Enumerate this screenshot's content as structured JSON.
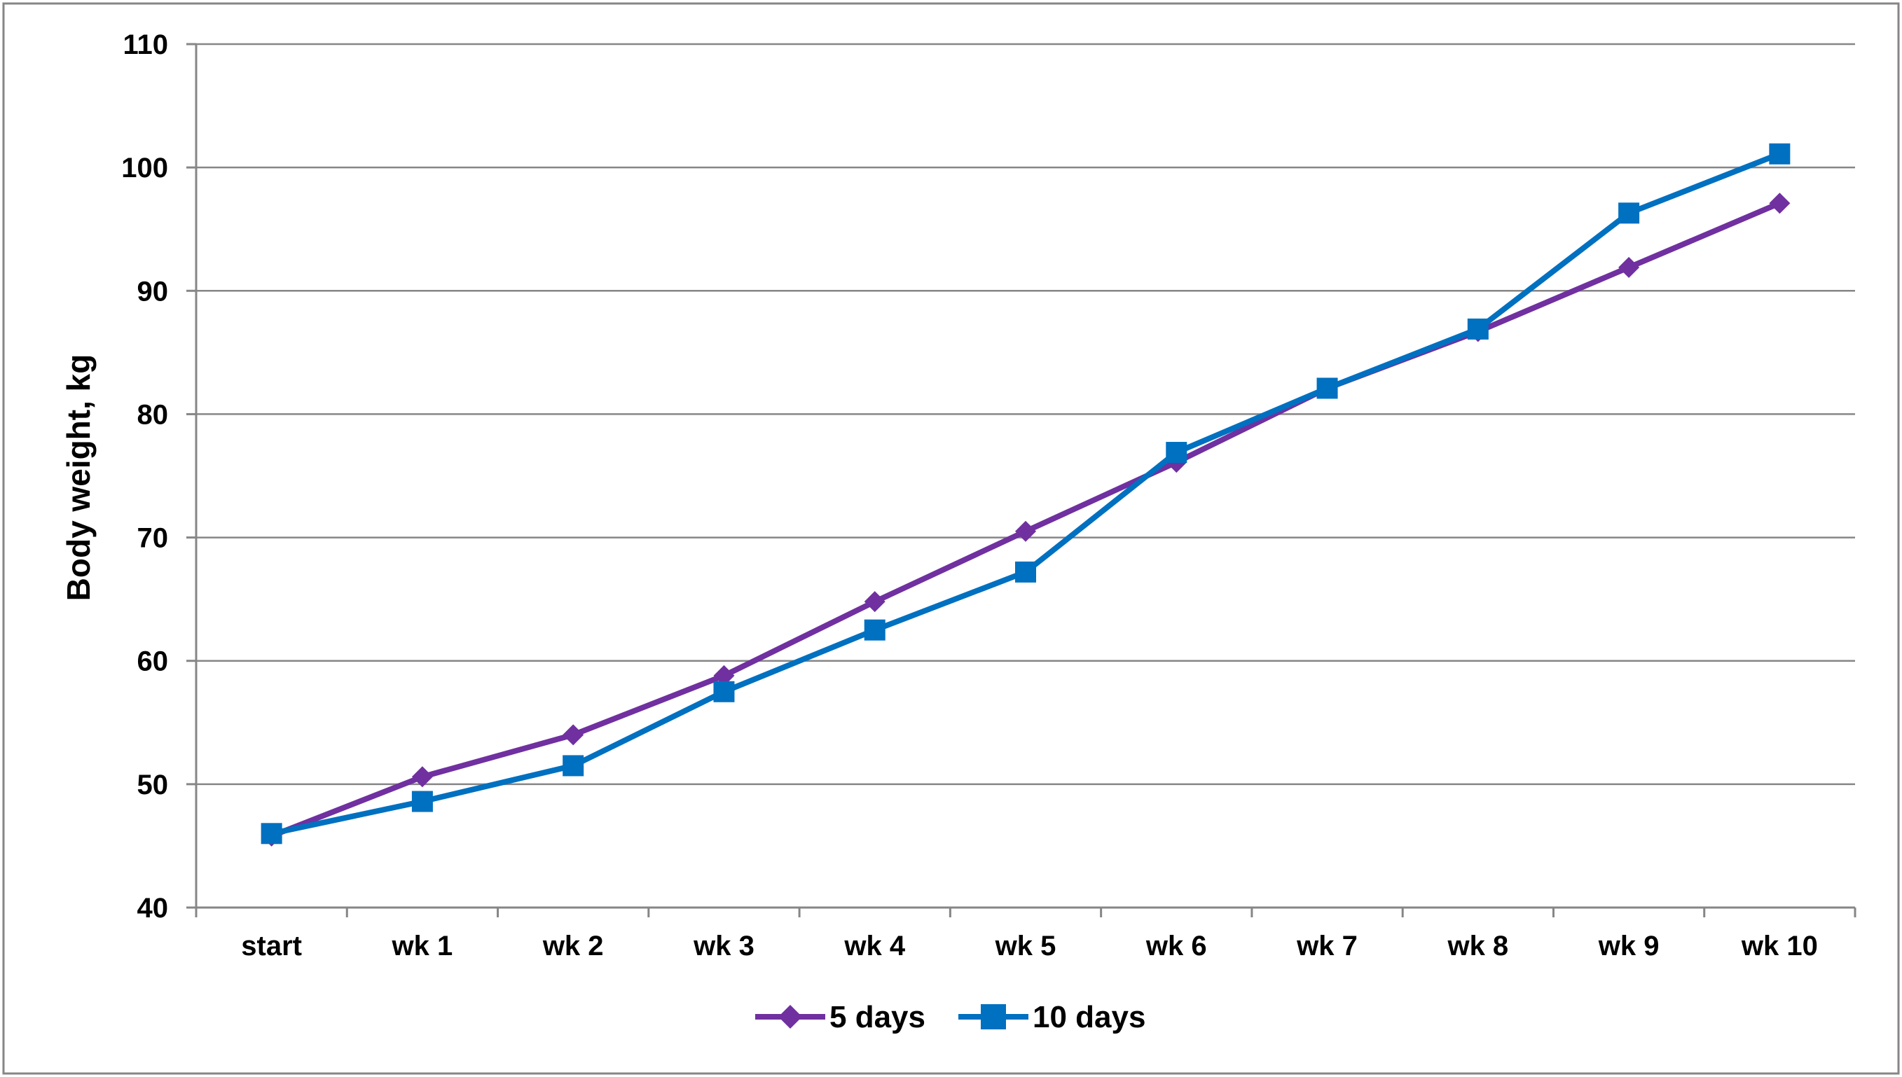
{
  "chart_data": {
    "type": "line",
    "title": "",
    "xlabel": "",
    "ylabel": "Body weight, kg",
    "categories": [
      "start",
      "wk 1",
      "wk 2",
      "wk 3",
      "wk 4",
      "wk 5",
      "wk 6",
      "wk 7",
      "wk 8",
      "wk 9",
      "wk 10"
    ],
    "ylim": [
      40,
      110
    ],
    "yticks": [
      40,
      50,
      60,
      70,
      80,
      90,
      100,
      110
    ],
    "grid": true,
    "legend_position": "bottom",
    "series": [
      {
        "name": "5 days",
        "marker": "diamond",
        "color": "#7030A0",
        "values": [
          45.8,
          50.6,
          54.0,
          58.8,
          64.8,
          70.5,
          76.1,
          82.1,
          86.7,
          91.9,
          97.1
        ]
      },
      {
        "name": "10 days",
        "marker": "square",
        "color": "#0070C0",
        "values": [
          46.0,
          48.6,
          51.5,
          57.5,
          62.5,
          67.2,
          76.9,
          82.1,
          86.9,
          96.3,
          101.1
        ]
      }
    ]
  },
  "colors": {
    "gridline": "#868686",
    "axis": "#868686",
    "border": "#868686"
  }
}
